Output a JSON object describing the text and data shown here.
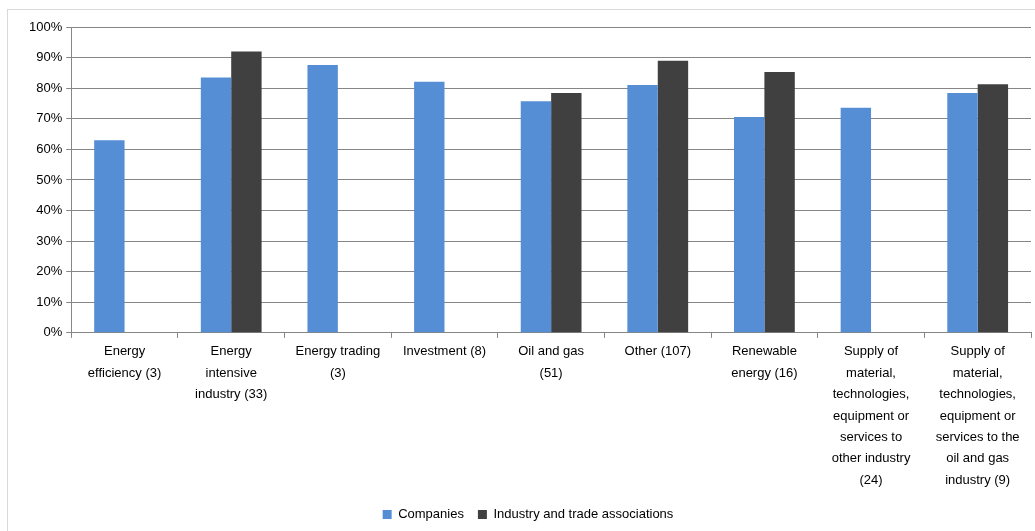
{
  "chart_data": {
    "type": "bar",
    "categories": [
      "Energy efficiency (3)",
      "Energy intensive industry (33)",
      "Energy trading (3)",
      "Investment (8)",
      "Oil and gas (51)",
      "Other (107)",
      "Renewable energy (16)",
      "Supply of material, technologies, equipment or services to other industry (24)",
      "Supply of material, technologies, equipment or services to the oil and gas industry (9)"
    ],
    "series": [
      {
        "name": "Companies",
        "color": "#558ed5",
        "values": [
          63,
          83.5,
          87.6,
          82.1,
          75.7,
          81,
          70.6,
          73.6,
          78.4
        ]
      },
      {
        "name": "Industry and trade associations",
        "color": "#404040",
        "values": [
          null,
          92,
          null,
          null,
          78.4,
          89,
          85.3,
          null,
          81.3
        ]
      }
    ],
    "ylim": [
      0,
      100
    ],
    "yticks": [
      {
        "value": 0,
        "label": "0%"
      },
      {
        "value": 10,
        "label": "10%"
      },
      {
        "value": 20,
        "label": "20%"
      },
      {
        "value": 30,
        "label": "30%"
      },
      {
        "value": 40,
        "label": "40%"
      },
      {
        "value": 50,
        "label": "50%"
      },
      {
        "value": 60,
        "label": "60%"
      },
      {
        "value": 70,
        "label": "70%"
      },
      {
        "value": 80,
        "label": "80%"
      },
      {
        "value": 90,
        "label": "90%"
      },
      {
        "value": 100,
        "label": "100%"
      }
    ],
    "grid": "y",
    "legend": "bottom"
  }
}
